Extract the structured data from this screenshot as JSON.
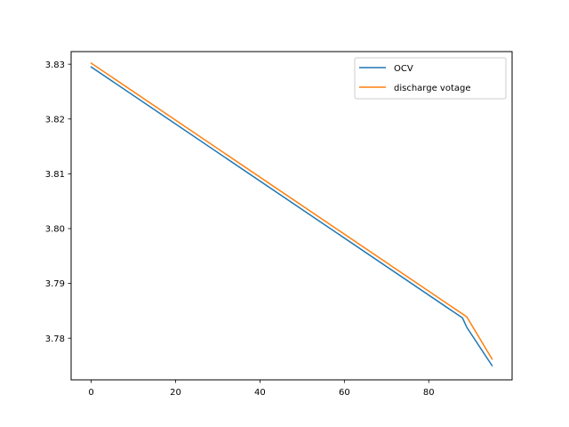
{
  "chart_data": {
    "type": "line",
    "title": "",
    "xlabel": "",
    "ylabel": "",
    "xlim": [
      -4.75,
      99.75
    ],
    "ylim": [
      3.7724,
      3.8323
    ],
    "grid": false,
    "legend_position": "top-right",
    "x_ticks": [
      0,
      20,
      40,
      60,
      80
    ],
    "y_ticks": [
      3.78,
      3.79,
      3.8,
      3.81,
      3.82,
      3.83
    ],
    "x_tick_labels": [
      "0",
      "20",
      "40",
      "60",
      "80"
    ],
    "y_tick_labels": [
      "3.78",
      "3.79",
      "3.80",
      "3.81",
      "3.82",
      "3.83"
    ],
    "series": [
      {
        "name": "OCV",
        "color": "#1f77b4",
        "x": [
          0,
          88,
          89,
          95
        ],
        "y": [
          3.8295,
          3.7837,
          3.782,
          3.775
        ]
      },
      {
        "name": "discharge votage",
        "color": "#ff7f0e",
        "x": [
          0,
          89,
          95
        ],
        "y": [
          3.8302,
          3.7839,
          3.7762
        ]
      }
    ]
  }
}
